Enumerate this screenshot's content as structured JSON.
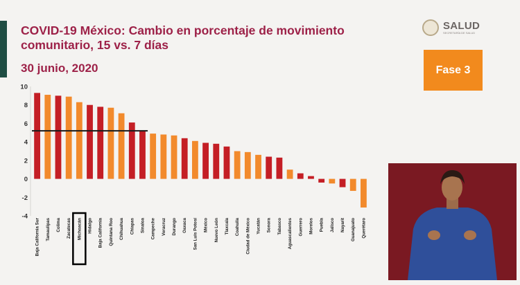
{
  "header": {
    "title": "COVID-19 México: Cambio en porcentaje de movimiento comunitario, 15 vs. 7 días",
    "date": "30 junio, 2020",
    "logo_text": "SALUD",
    "logo_subtext": "SECRETARÍA DE SALUD",
    "phase_label": "Fase 3"
  },
  "colors": {
    "brand": "#9d2148",
    "accent": "#1f4d43",
    "bar_dark": "#c41e25",
    "bar_light": "#f28a2c",
    "phase_box": "#f28a1d",
    "reference_line": "#1a1a1a",
    "highlight_box": "#000000"
  },
  "chart_data": {
    "type": "bar",
    "categories": [
      "Baja California Sur",
      "Tamaulipas",
      "Colima",
      "Zacatecas",
      "Michoacán",
      "Hidalgo",
      "Baja California",
      "Quintana Roo",
      "Chihuahua",
      "Chiapas",
      "Sinaloa",
      "Campeche",
      "Veracruz",
      "Durango",
      "Oaxaca",
      "San Luis Potosí",
      "México",
      "Nuevo León",
      "Tlaxcala",
      "Coahuila",
      "Ciudad de México",
      "Yucatán",
      "Sonora",
      "Tabasco",
      "Aguascalientes",
      "Guerrero",
      "Morelos",
      "Puebla",
      "Jalisco",
      "Nayarit",
      "Guanajuato",
      "Querétaro"
    ],
    "values": [
      9.3,
      9.1,
      9.0,
      8.9,
      8.3,
      8.0,
      7.8,
      7.7,
      7.1,
      6.1,
      5.2,
      4.9,
      4.8,
      4.7,
      4.4,
      4.1,
      3.9,
      3.8,
      3.5,
      3.0,
      2.9,
      2.6,
      2.4,
      2.3,
      1.0,
      0.6,
      0.3,
      -0.4,
      -0.5,
      -0.9,
      -1.3,
      -3.1
    ],
    "bar_colors": [
      "dark",
      "light",
      "dark",
      "light",
      "light",
      "dark",
      "dark",
      "light",
      "light",
      "dark",
      "dark",
      "light",
      "light",
      "light",
      "dark",
      "light",
      "dark",
      "dark",
      "dark",
      "light",
      "light",
      "light",
      "dark",
      "dark",
      "light",
      "dark",
      "dark",
      "dark",
      "light",
      "dark",
      "light",
      "light"
    ],
    "yticks": [
      10,
      8,
      6,
      4,
      2,
      0,
      -2,
      -4
    ],
    "ylim": [
      -4,
      10
    ],
    "reference_line_value": 5.2,
    "reference_line_span": [
      "Baja California Sur",
      "Sinaloa"
    ],
    "highlighted_category": "Michoacán",
    "grid": false,
    "legend": "none"
  }
}
